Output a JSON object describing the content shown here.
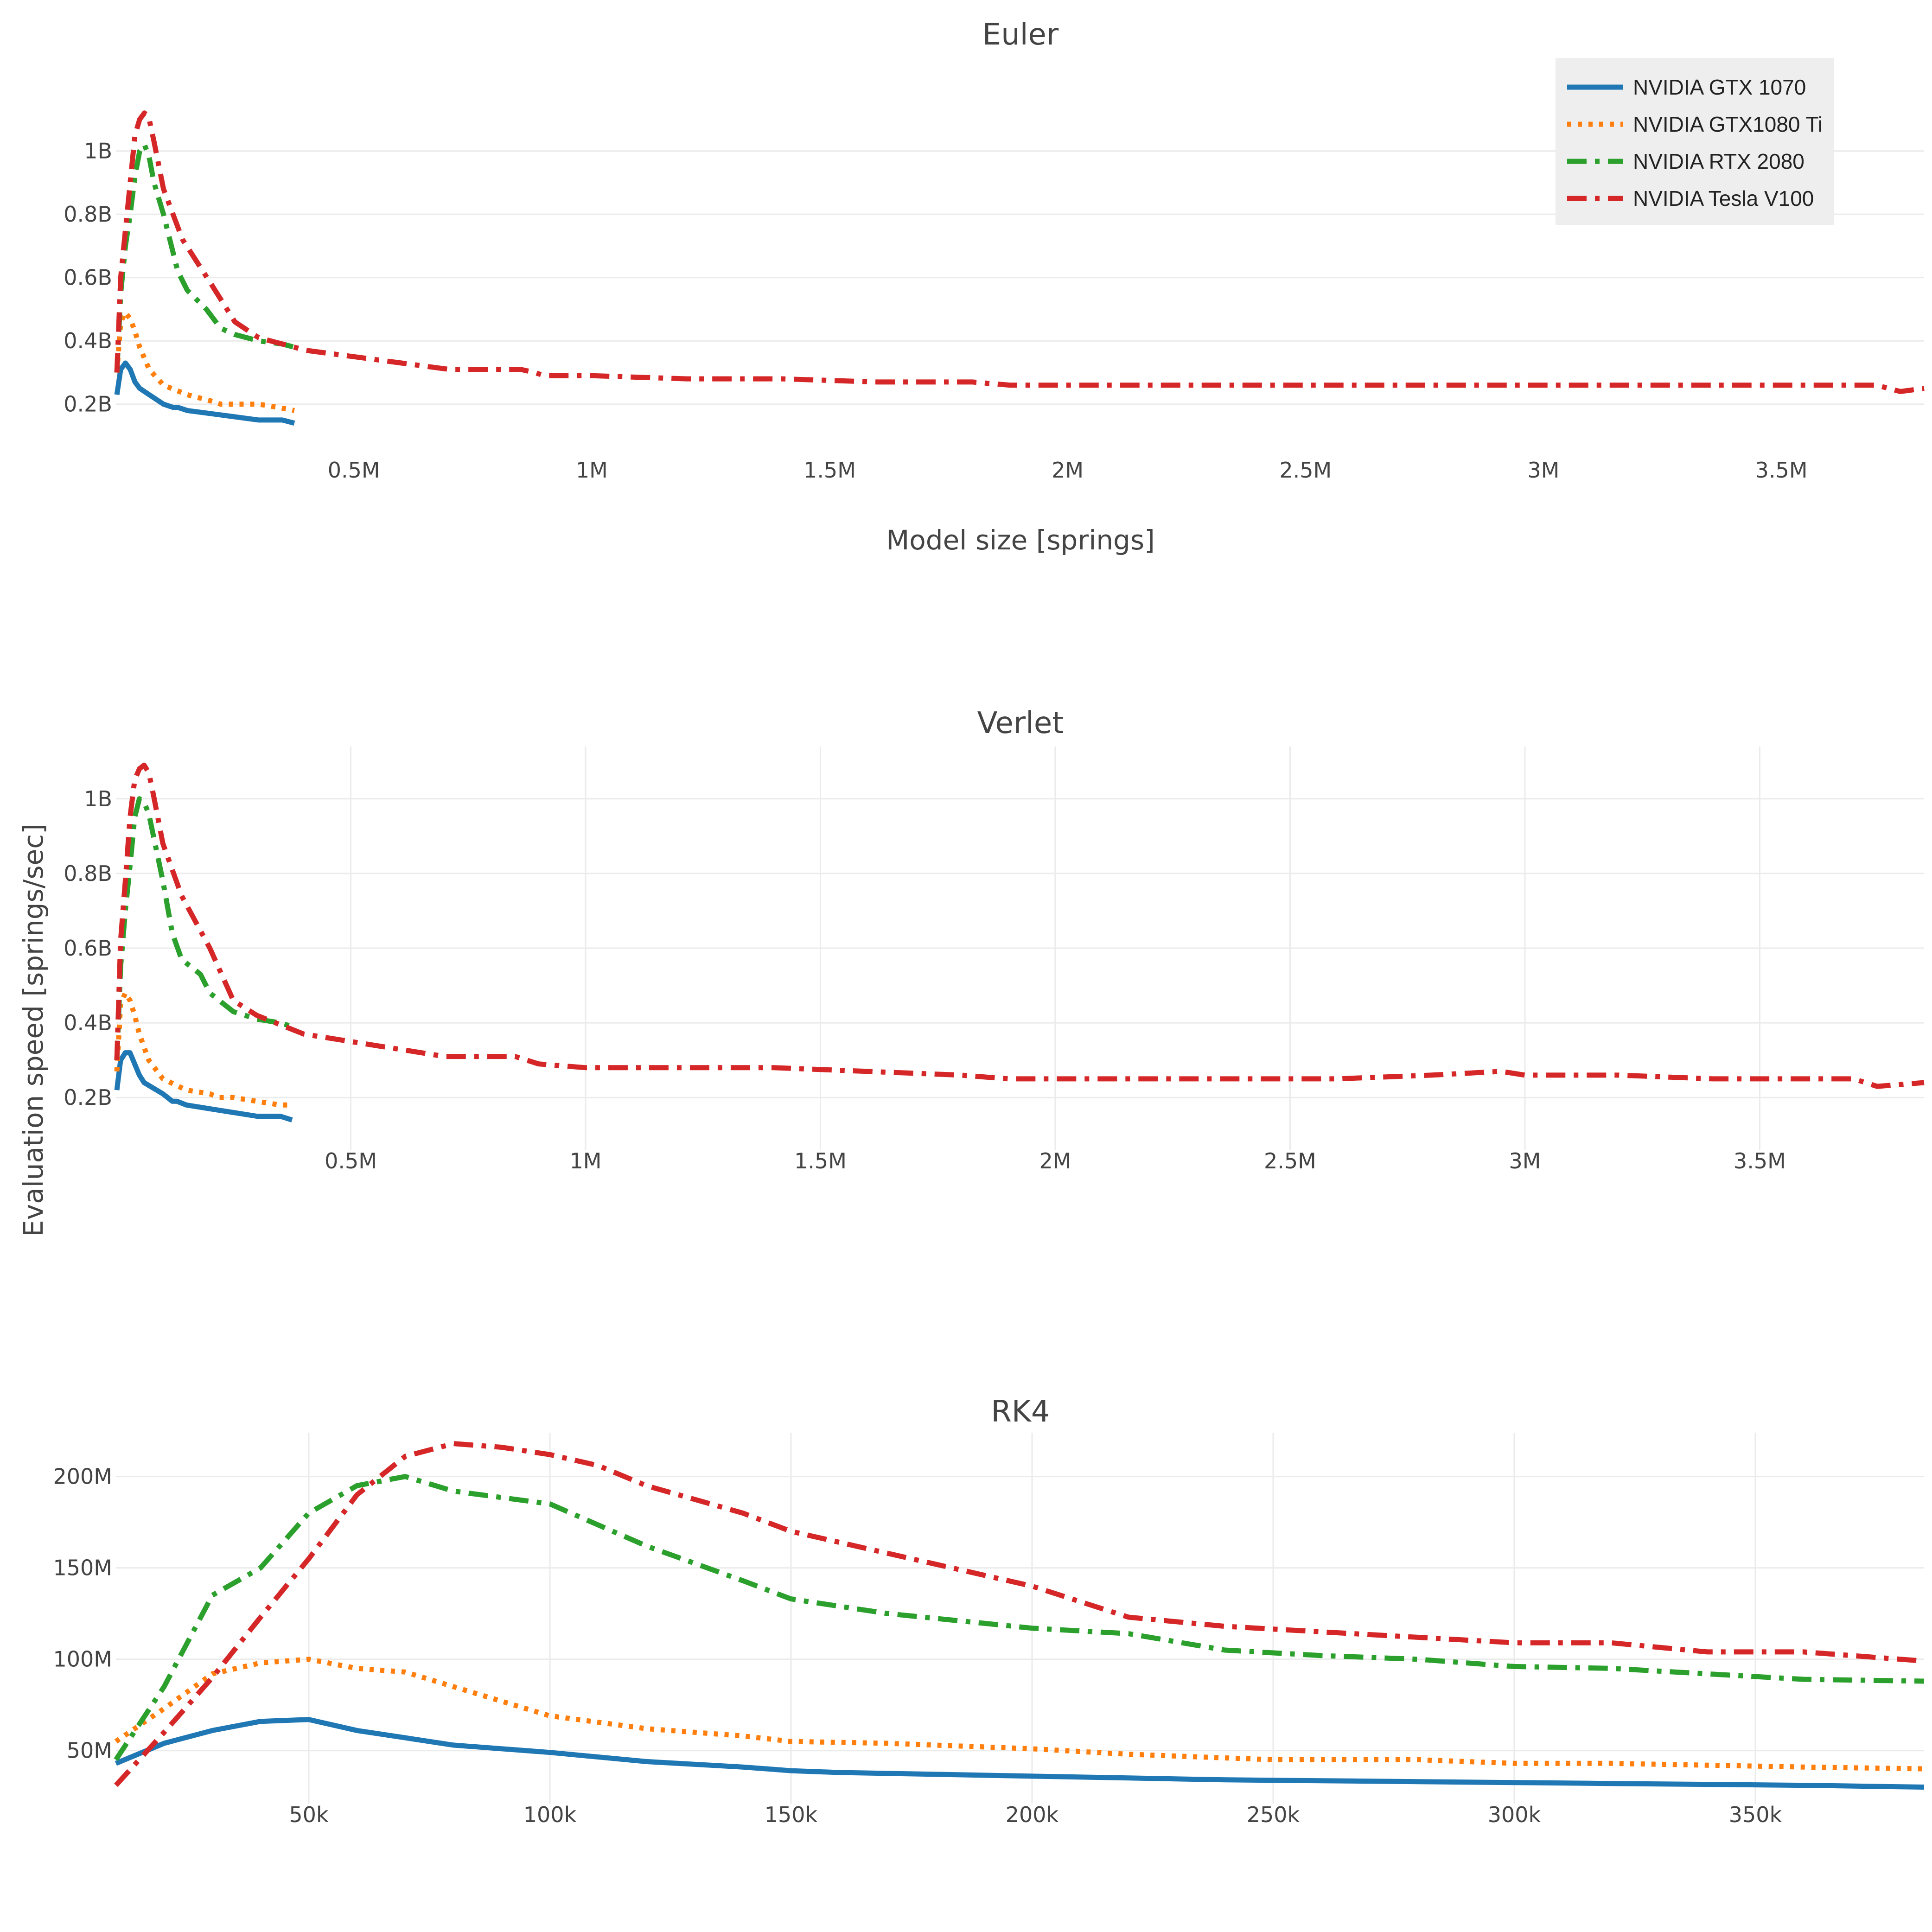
{
  "figure": {
    "x_axis_label": "Model size [springs]",
    "y_axis_label": "Evaluation speed [springs/sec]"
  },
  "legend": {
    "entries": [
      "NVIDIA GTX 1070",
      "NVIDIA GTX1080 Ti",
      "NVIDIA RTX 2080",
      "NVIDIA Tesla V100"
    ]
  },
  "series_style": {
    "NVIDIA GTX 1070": {
      "color": "#1f77b4",
      "dash": "solid"
    },
    "NVIDIA GTX1080 Ti": {
      "color": "#ff7f0e",
      "dash": "dot"
    },
    "NVIDIA RTX 2080": {
      "color": "#2ca02c",
      "dash": "dashdot"
    },
    "NVIDIA Tesla V100": {
      "color": "#d62728",
      "dash": "dashdot"
    }
  },
  "chart_data": [
    {
      "type": "line",
      "title": "Euler",
      "xlabel": "Model size [springs]",
      "ylabel": "Evaluation speed [springs/sec]",
      "xlim": [
        0,
        3800000
      ],
      "ylim": [
        0.1,
        1.14
      ],
      "x_ticks": [
        500000,
        1000000,
        1500000,
        2000000,
        2500000,
        3000000,
        3500000
      ],
      "x_tick_labels": [
        "0.5M",
        "1M",
        "1.5M",
        "2M",
        "2.5M",
        "3M",
        "3.5M"
      ],
      "y_ticks": [
        0.2,
        0.4,
        0.6,
        0.8,
        1.0
      ],
      "y_tick_labels": [
        "0.2B",
        "0.4B",
        "0.6B",
        "0.8B",
        "1B"
      ],
      "grid": {
        "x": false,
        "y": true
      },
      "series": [
        {
          "name": "NVIDIA GTX 1070",
          "x": [
            2000,
            10000,
            20000,
            30000,
            40000,
            50000,
            70000,
            100000,
            120000,
            130000,
            150000,
            200000,
            250000,
            300000,
            350000,
            375000
          ],
          "values": [
            0.23,
            0.31,
            0.33,
            0.31,
            0.27,
            0.25,
            0.23,
            0.2,
            0.19,
            0.19,
            0.18,
            0.17,
            0.16,
            0.15,
            0.15,
            0.14
          ]
        },
        {
          "name": "NVIDIA GTX1080 Ti",
          "x": [
            2000,
            10000,
            20000,
            30000,
            40000,
            50000,
            70000,
            100000,
            150000,
            200000,
            220000,
            250000,
            300000,
            340000,
            375000
          ],
          "values": [
            0.3,
            0.46,
            0.49,
            0.47,
            0.43,
            0.38,
            0.31,
            0.26,
            0.23,
            0.21,
            0.2,
            0.2,
            0.2,
            0.19,
            0.18
          ]
        },
        {
          "name": "NVIDIA RTX 2080",
          "x": [
            2000,
            10000,
            20000,
            30000,
            40000,
            50000,
            60000,
            70000,
            80000,
            100000,
            130000,
            150000,
            190000,
            220000,
            250000,
            300000,
            350000,
            375000
          ],
          "values": [
            0.3,
            0.55,
            0.7,
            0.8,
            0.92,
            1.0,
            1.02,
            0.98,
            0.9,
            0.8,
            0.62,
            0.56,
            0.5,
            0.44,
            0.42,
            0.4,
            0.39,
            0.38
          ]
        },
        {
          "name": "NVIDIA Tesla V100",
          "x": [
            2000,
            10000,
            20000,
            30000,
            40000,
            50000,
            60000,
            70000,
            80000,
            100000,
            140000,
            200000,
            250000,
            300000,
            400000,
            500000,
            600000,
            700000,
            800000,
            850000,
            880000,
            900000,
            1000000,
            1200000,
            1400000,
            1600000,
            1800000,
            1880000,
            2000000,
            2200000,
            2400000,
            2600000,
            2800000,
            3000000,
            3200000,
            3400000,
            3600000,
            3700000,
            3750000,
            3800000
          ],
          "values": [
            0.3,
            0.6,
            0.75,
            0.9,
            1.05,
            1.1,
            1.12,
            1.1,
            1.03,
            0.88,
            0.72,
            0.58,
            0.46,
            0.41,
            0.37,
            0.35,
            0.33,
            0.31,
            0.31,
            0.31,
            0.3,
            0.29,
            0.29,
            0.28,
            0.28,
            0.27,
            0.27,
            0.26,
            0.26,
            0.26,
            0.26,
            0.26,
            0.26,
            0.26,
            0.26,
            0.26,
            0.26,
            0.26,
            0.24,
            0.25
          ]
        }
      ]
    },
    {
      "type": "line",
      "title": "Verlet",
      "xlabel": "",
      "ylabel": "Evaluation speed [springs/sec]",
      "xlim": [
        0,
        3850000
      ],
      "ylim": [
        0.06,
        1.14
      ],
      "x_ticks": [
        500000,
        1000000,
        1500000,
        2000000,
        2500000,
        3000000,
        3500000
      ],
      "x_tick_labels": [
        "0.5M",
        "1M",
        "1.5M",
        "2M",
        "2.5M",
        "3M",
        "3.5M"
      ],
      "y_ticks": [
        0.2,
        0.4,
        0.6,
        0.8,
        1.0
      ],
      "y_tick_labels": [
        "0.2B",
        "0.4B",
        "0.6B",
        "0.8B",
        "1B"
      ],
      "grid": {
        "x": true,
        "y": true
      },
      "series": [
        {
          "name": "NVIDIA GTX 1070",
          "x": [
            2000,
            10000,
            20000,
            30000,
            40000,
            50000,
            60000,
            100000,
            120000,
            130000,
            150000,
            200000,
            250000,
            300000,
            350000,
            375000
          ],
          "values": [
            0.22,
            0.3,
            0.32,
            0.32,
            0.29,
            0.26,
            0.24,
            0.21,
            0.19,
            0.19,
            0.18,
            0.17,
            0.16,
            0.15,
            0.15,
            0.14
          ]
        },
        {
          "name": "NVIDIA GTX1080 Ti",
          "x": [
            2000,
            10000,
            20000,
            30000,
            40000,
            50000,
            70000,
            100000,
            150000,
            200000,
            220000,
            250000,
            300000,
            350000,
            375000
          ],
          "values": [
            0.27,
            0.45,
            0.48,
            0.46,
            0.42,
            0.37,
            0.3,
            0.25,
            0.22,
            0.21,
            0.2,
            0.2,
            0.19,
            0.18,
            0.18
          ]
        },
        {
          "name": "NVIDIA RTX 2080",
          "x": [
            2000,
            10000,
            20000,
            30000,
            40000,
            50000,
            60000,
            70000,
            80000,
            100000,
            120000,
            140000,
            180000,
            200000,
            250000,
            300000,
            350000,
            375000
          ],
          "values": [
            0.3,
            0.55,
            0.7,
            0.82,
            0.95,
            1.0,
            0.99,
            0.96,
            0.9,
            0.78,
            0.64,
            0.57,
            0.53,
            0.48,
            0.43,
            0.41,
            0.4,
            0.39
          ]
        },
        {
          "name": "NVIDIA Tesla V100",
          "x": [
            2000,
            10000,
            20000,
            30000,
            40000,
            50000,
            60000,
            70000,
            80000,
            100000,
            140000,
            200000,
            250000,
            300000,
            400000,
            500000,
            600000,
            700000,
            800000,
            850000,
            900000,
            1000000,
            1200000,
            1400000,
            1600000,
            1800000,
            1900000,
            2000000,
            2200000,
            2400000,
            2600000,
            2800000,
            2950000,
            3000000,
            3200000,
            3400000,
            3600000,
            3700000,
            3750000,
            3850000
          ],
          "values": [
            0.3,
            0.62,
            0.78,
            0.95,
            1.05,
            1.08,
            1.09,
            1.07,
            1.01,
            0.88,
            0.74,
            0.6,
            0.46,
            0.42,
            0.37,
            0.35,
            0.33,
            0.31,
            0.31,
            0.31,
            0.29,
            0.28,
            0.28,
            0.28,
            0.27,
            0.26,
            0.25,
            0.25,
            0.25,
            0.25,
            0.25,
            0.26,
            0.27,
            0.26,
            0.26,
            0.25,
            0.25,
            0.25,
            0.23,
            0.24
          ]
        }
      ]
    },
    {
      "type": "line",
      "title": "RK4",
      "xlabel": "",
      "ylabel": "Evaluation speed [springs/sec]",
      "xlim": [
        10000,
        385000
      ],
      "ylim": [
        21,
        224
      ],
      "x_ticks": [
        50000,
        100000,
        150000,
        200000,
        250000,
        300000,
        350000
      ],
      "x_tick_labels": [
        "50k",
        "100k",
        "150k",
        "200k",
        "250k",
        "300k",
        "350k"
      ],
      "y_ticks": [
        50,
        100,
        150,
        200
      ],
      "y_tick_labels": [
        "50M",
        "100M",
        "150M",
        "200M"
      ],
      "grid": {
        "x": true,
        "y": true
      },
      "series": [
        {
          "name": "NVIDIA GTX 1070",
          "x": [
            10000,
            20000,
            30000,
            40000,
            50000,
            60000,
            70000,
            80000,
            100000,
            120000,
            140000,
            150000,
            160000,
            180000,
            200000,
            220000,
            240000,
            260000,
            280000,
            300000,
            320000,
            340000,
            360000,
            385000
          ],
          "values": [
            43,
            54,
            61,
            66,
            67,
            61,
            57,
            53,
            49,
            44,
            41,
            39,
            38,
            37,
            36,
            35,
            34,
            33.5,
            33,
            32.5,
            32,
            31.5,
            31,
            30
          ]
        },
        {
          "name": "NVIDIA GTX1080 Ti",
          "x": [
            10000,
            20000,
            30000,
            40000,
            50000,
            60000,
            70000,
            80000,
            100000,
            120000,
            140000,
            150000,
            170000,
            200000,
            220000,
            250000,
            280000,
            300000,
            320000,
            340000,
            360000,
            385000
          ],
          "values": [
            55,
            73,
            92,
            98,
            100,
            95,
            93,
            85,
            69,
            62,
            58,
            55,
            54,
            51,
            48,
            45,
            45,
            43,
            43,
            42,
            41,
            40
          ]
        },
        {
          "name": "NVIDIA RTX 2080",
          "x": [
            10000,
            20000,
            30000,
            40000,
            50000,
            60000,
            70000,
            80000,
            100000,
            120000,
            140000,
            150000,
            170000,
            200000,
            220000,
            240000,
            260000,
            280000,
            300000,
            320000,
            340000,
            360000,
            385000
          ],
          "values": [
            45,
            85,
            135,
            150,
            180,
            195,
            200,
            192,
            185,
            162,
            143,
            133,
            125,
            117,
            114,
            105,
            102,
            100,
            96,
            95,
            92,
            89,
            88
          ]
        },
        {
          "name": "NVIDIA Tesla V100",
          "x": [
            10000,
            20000,
            30000,
            40000,
            50000,
            60000,
            70000,
            80000,
            90000,
            100000,
            110000,
            120000,
            140000,
            150000,
            170000,
            200000,
            220000,
            240000,
            260000,
            280000,
            300000,
            320000,
            340000,
            360000,
            385000
          ],
          "values": [
            31,
            60,
            90,
            123,
            155,
            190,
            211,
            218,
            216,
            212,
            206,
            195,
            180,
            170,
            158,
            140,
            123,
            118,
            115,
            112,
            109,
            109,
            104,
            104,
            99
          ]
        }
      ]
    }
  ]
}
